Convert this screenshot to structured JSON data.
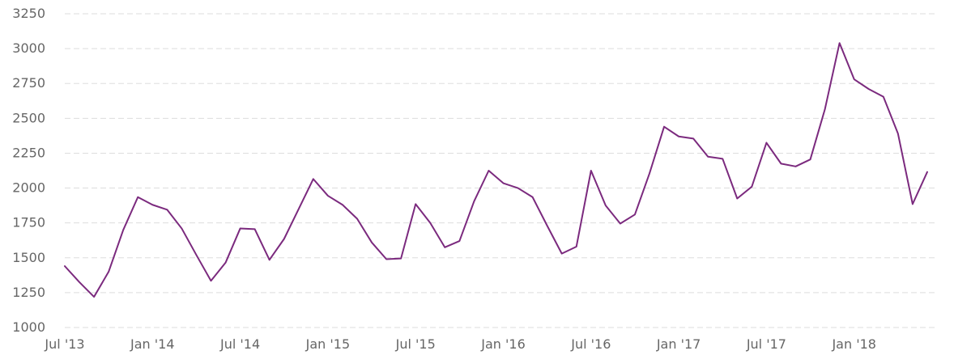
{
  "chart_data": {
    "type": "line",
    "title": "",
    "xlabel": "",
    "ylabel": "",
    "ylim": [
      1000,
      3250
    ],
    "y_ticks": [
      1000,
      1250,
      1500,
      1750,
      2000,
      2250,
      2500,
      2750,
      3000,
      3250
    ],
    "grid": true,
    "grid_style": "dashed",
    "x_ticks": [
      {
        "label": "Jul '13",
        "index": 0
      },
      {
        "label": "Jan '14",
        "index": 6
      },
      {
        "label": "Jul '14",
        "index": 12
      },
      {
        "label": "Jan '15",
        "index": 18
      },
      {
        "label": "Jul '15",
        "index": 24
      },
      {
        "label": "Jan '16",
        "index": 30
      },
      {
        "label": "Jul '16",
        "index": 36
      },
      {
        "label": "Jan '17",
        "index": 42
      },
      {
        "label": "Jul '17",
        "index": 48
      },
      {
        "label": "Jan '18",
        "index": 54
      }
    ],
    "x": [
      "2013-07",
      "2013-08",
      "2013-09",
      "2013-10",
      "2013-11",
      "2013-12",
      "2014-01",
      "2014-02",
      "2014-03",
      "2014-04",
      "2014-05",
      "2014-06",
      "2014-07",
      "2014-08",
      "2014-09",
      "2014-10",
      "2014-11",
      "2014-12",
      "2015-01",
      "2015-02",
      "2015-03",
      "2015-04",
      "2015-05",
      "2015-06",
      "2015-07",
      "2015-08",
      "2015-09",
      "2015-10",
      "2015-11",
      "2015-12",
      "2016-01",
      "2016-02",
      "2016-03",
      "2016-04",
      "2016-05",
      "2016-06",
      "2016-07",
      "2016-08",
      "2016-09",
      "2016-10",
      "2016-11",
      "2016-12",
      "2017-01",
      "2017-02",
      "2017-03",
      "2017-04",
      "2017-05",
      "2017-06",
      "2017-07",
      "2017-08",
      "2017-09",
      "2017-10",
      "2017-11",
      "2017-12",
      "2018-01",
      "2018-02",
      "2018-03",
      "2018-04",
      "2018-05",
      "2018-06"
    ],
    "series": [
      {
        "color": "#7b2a7e",
        "values": [
          1440,
          1325,
          1220,
          1400,
          1700,
          1935,
          1880,
          1845,
          1710,
          1520,
          1335,
          1465,
          1710,
          1705,
          1485,
          1635,
          1850,
          2065,
          1945,
          1880,
          1780,
          1610,
          1490,
          1495,
          1885,
          1750,
          1575,
          1620,
          1905,
          2125,
          2035,
          2000,
          1935,
          1730,
          1530,
          1580,
          2125,
          1875,
          1745,
          1810,
          2105,
          2440,
          2370,
          2355,
          2225,
          2210,
          1925,
          2010,
          2325,
          2175,
          2155,
          2205,
          2565,
          3040,
          2780,
          2710,
          2655,
          2390,
          1885,
          2115
        ]
      }
    ]
  }
}
